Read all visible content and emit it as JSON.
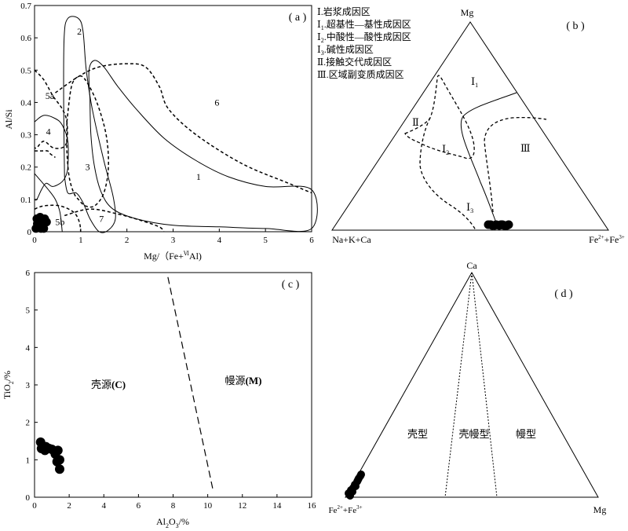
{
  "chart_data": [
    {
      "panel": "(a)",
      "type": "scatter",
      "ylabel": "Al/Si",
      "xlabel_main": "Mg/（Fe+",
      "xlabel_sup": "Ⅵ",
      "xlabel_end": "Al)",
      "xlim": [
        0,
        6
      ],
      "ylim": [
        0,
        0.7
      ],
      "xticks": [
        "0",
        "1",
        "2",
        "3",
        "4",
        "5",
        "6"
      ],
      "yticks": [
        "0",
        "0.1",
        "0.2",
        "0.3",
        "0.4",
        "0.5",
        "0.6",
        "0.7"
      ],
      "grid": false,
      "region_labels": [
        {
          "text": "1",
          "x": 3.55,
          "y": 0.17
        },
        {
          "text": "2",
          "x": 0.97,
          "y": 0.62
        },
        {
          "text": "3",
          "x": 1.15,
          "y": 0.2
        },
        {
          "text": "4",
          "x": 0.3,
          "y": 0.31
        },
        {
          "text": "5a",
          "x": 0.33,
          "y": 0.42
        },
        {
          "text": "5b",
          "x": 0.55,
          "y": 0.03
        },
        {
          "text": "6",
          "x": 3.95,
          "y": 0.4
        },
        {
          "text": "7",
          "x": 1.45,
          "y": 0.04
        }
      ],
      "regions": [
        {
          "label": "1",
          "dash": "solid",
          "points": [
            [
              1.2,
              0.41
            ],
            [
              1.18,
              0.5
            ],
            [
              1.3,
              0.53
            ],
            [
              1.5,
              0.51
            ],
            [
              1.8,
              0.45
            ],
            [
              2.2,
              0.38
            ],
            [
              2.8,
              0.29
            ],
            [
              3.5,
              0.22
            ],
            [
              4.2,
              0.17
            ],
            [
              5.0,
              0.14
            ],
            [
              6.0,
              0.13
            ],
            [
              6,
              0.01
            ],
            [
              5.0,
              0.01
            ],
            [
              4.0,
              0.015
            ],
            [
              3.0,
              0.02
            ],
            [
              2.2,
              0.04
            ],
            [
              1.7,
              0.07
            ],
            [
              1.45,
              0.12
            ],
            [
              1.3,
              0.2
            ],
            [
              1.22,
              0.3
            ],
            [
              1.2,
              0.41
            ]
          ]
        },
        {
          "label": "2",
          "dash": "solid",
          "points": [
            [
              0.65,
              0.17
            ],
            [
              0.63,
              0.4
            ],
            [
              0.64,
              0.6
            ],
            [
              0.72,
              0.66
            ],
            [
              0.95,
              0.66
            ],
            [
              1.05,
              0.62
            ],
            [
              1.12,
              0.5
            ],
            [
              1.25,
              0.38
            ],
            [
              1.5,
              0.22
            ],
            [
              1.7,
              0.11
            ],
            [
              1.75,
              0.04
            ],
            [
              1.6,
              0.005
            ],
            [
              1.4,
              0.0
            ],
            [
              1.2,
              0.04
            ],
            [
              1.05,
              0.09
            ],
            [
              0.9,
              0.12
            ],
            [
              0.72,
              0.12
            ],
            [
              0.65,
              0.17
            ]
          ]
        },
        {
          "label": "3",
          "dash": "dash",
          "points": [
            [
              0.7,
              0.34
            ],
            [
              0.8,
              0.45
            ],
            [
              0.95,
              0.48
            ],
            [
              1.1,
              0.47
            ],
            [
              1.35,
              0.4
            ],
            [
              1.55,
              0.3
            ],
            [
              1.6,
              0.2
            ],
            [
              1.5,
              0.12
            ],
            [
              1.3,
              0.08
            ],
            [
              1.1,
              0.08
            ],
            [
              0.95,
              0.1
            ],
            [
              0.85,
              0.12
            ],
            [
              0.75,
              0.17
            ],
            [
              0.7,
              0.25
            ],
            [
              0.7,
              0.34
            ]
          ]
        },
        {
          "label": "4",
          "dash": "solid",
          "points": [
            [
              0.0,
              0.34
            ],
            [
              0.2,
              0.36
            ],
            [
              0.45,
              0.35
            ],
            [
              0.6,
              0.33
            ],
            [
              0.72,
              0.28
            ],
            [
              0.72,
              0.2
            ],
            [
              0.67,
              0.17
            ],
            [
              0.6,
              0.155
            ],
            [
              0.5,
              0.145
            ],
            [
              0.38,
              0.14
            ],
            [
              0.25,
              0.15
            ],
            [
              0.15,
              0.13
            ],
            [
              0.05,
              0.1
            ],
            [
              0.0,
              0.1
            ]
          ]
        },
        {
          "label": "4 inner",
          "dash": "solid",
          "points": [
            [
              0.0,
              0.18
            ],
            [
              0.12,
              0.16
            ],
            [
              0.3,
              0.13
            ],
            [
              0.45,
              0.1
            ],
            [
              0.55,
              0.06
            ],
            [
              0.6,
              0.0
            ]
          ]
        },
        {
          "label": "5a",
          "dash": "dash",
          "points": [
            [
              0.0,
              0.5
            ],
            [
              0.2,
              0.47
            ],
            [
              0.4,
              0.42
            ],
            [
              0.6,
              0.38
            ],
            [
              0.7,
              0.34
            ],
            [
              0.7,
              0.28
            ],
            [
              0.6,
              0.26
            ],
            [
              0.4,
              0.26
            ],
            [
              0.2,
              0.28
            ],
            [
              0.05,
              0.26
            ],
            [
              0.0,
              0.26
            ]
          ]
        },
        {
          "label": "5a lower",
          "dash": "dash",
          "points": [
            [
              0.0,
              0.25
            ],
            [
              0.15,
              0.25
            ],
            [
              0.28,
              0.25
            ],
            [
              0.35,
              0.24
            ],
            [
              0.45,
              0.23
            ]
          ]
        },
        {
          "label": "5b",
          "dash": "dash",
          "points": [
            [
              0.0,
              0.07
            ],
            [
              0.2,
              0.08
            ],
            [
              0.55,
              0.08
            ],
            [
              0.85,
              0.06
            ],
            [
              0.97,
              0.03
            ],
            [
              1.0,
              0.0
            ]
          ]
        },
        {
          "label": "6",
          "dash": "dash",
          "points": [
            [
              0.45,
              0.43
            ],
            [
              0.95,
              0.48
            ],
            [
              1.4,
              0.51
            ],
            [
              2.0,
              0.52
            ],
            [
              2.4,
              0.51
            ],
            [
              2.7,
              0.45
            ],
            [
              2.9,
              0.38
            ],
            [
              3.5,
              0.3
            ],
            [
              4.5,
              0.21
            ],
            [
              5.5,
              0.15
            ],
            [
              6.0,
              0.12
            ]
          ]
        },
        {
          "label": "7",
          "dash": "dash",
          "points": [
            [
              0.65,
              0.05
            ],
            [
              1.2,
              0.07
            ],
            [
              1.8,
              0.055
            ],
            [
              2.3,
              0.035
            ],
            [
              2.7,
              0.015
            ],
            [
              2.8,
              0.0
            ]
          ]
        }
      ],
      "samples": {
        "marker": "filled-circle",
        "points": [
          [
            0.03,
            0.01
          ],
          [
            0.06,
            0.025
          ],
          [
            0.05,
            0.04
          ],
          [
            0.09,
            0.03
          ],
          [
            0.12,
            0.045
          ],
          [
            0.15,
            0.03
          ],
          [
            0.18,
            0.02
          ],
          [
            0.22,
            0.04
          ],
          [
            0.26,
            0.03
          ],
          [
            0.08,
            0.015
          ],
          [
            0.14,
            0.01
          ],
          [
            0.2,
            0.01
          ]
        ]
      }
    },
    {
      "panel": "(b)",
      "type": "ternary",
      "apex_top": "Mg",
      "apex_left": "Na+K+Ca",
      "apex_right_main": "Fe",
      "apex_right_sup1": "2+",
      "apex_right_mid": "+Fe",
      "apex_right_sup2": "3+",
      "legend": [
        {
          "roman": "Ⅰ",
          "sub": "",
          "text": ".岩浆成因区"
        },
        {
          "roman": "Ⅰ",
          "sub": "1",
          "text": ".超基性—基性成因区"
        },
        {
          "roman": "Ⅰ",
          "sub": "2",
          "text": ".中酸性—酸性成因区"
        },
        {
          "roman": "Ⅰ",
          "sub": "3",
          "text": ".碱性成因区"
        },
        {
          "roman": "Ⅱ",
          "sub": "",
          "text": ".接触交代成因区"
        },
        {
          "roman": "Ⅲ",
          "sub": "",
          "text": ".区域副变质成因区"
        }
      ],
      "region_labels": [
        {
          "roman": "Ⅰ",
          "sub": "1"
        },
        {
          "roman": "Ⅱ",
          "sub": ""
        },
        {
          "roman": "Ⅰ",
          "sub": "2"
        },
        {
          "roman": "Ⅰ",
          "sub": "3"
        },
        {
          "roman": "Ⅲ",
          "sub": ""
        }
      ],
      "samples": {
        "marker": "filled-circle",
        "count": 12,
        "location": "bottom edge near Fe2+ + Fe3+ side"
      }
    },
    {
      "panel": "(c)",
      "type": "scatter",
      "xlabel_main": "Al",
      "xlabel_sub1": "2",
      "xlabel_mid": "O",
      "xlabel_sub2": "3",
      "xlabel_end": "/%",
      "ylabel_main": "TiO",
      "ylabel_sub": "2",
      "ylabel_end": "/%",
      "xlim": [
        0,
        16
      ],
      "ylim": [
        0,
        6
      ],
      "xticks": [
        "0",
        "2",
        "4",
        "6",
        "8",
        "10",
        "12",
        "14",
        "16"
      ],
      "yticks": [
        "0",
        "1",
        "2",
        "3",
        "4",
        "5",
        "6"
      ],
      "grid": false,
      "boundary_line": {
        "dash": "dash",
        "points": [
          [
            7.7,
            5.88
          ],
          [
            10.3,
            0.2
          ]
        ]
      },
      "field_labels": [
        {
          "text": "壳源",
          "bold": "(C)"
        },
        {
          "text": "幔源",
          "bold": "(M)"
        }
      ],
      "samples": {
        "marker": "filled-circle",
        "points": [
          [
            0.35,
            1.47
          ],
          [
            0.4,
            1.3
          ],
          [
            0.6,
            1.25
          ],
          [
            0.65,
            1.35
          ],
          [
            0.85,
            1.3
          ],
          [
            1.0,
            1.28
          ],
          [
            1.15,
            1.22
          ],
          [
            1.2,
            1.15
          ],
          [
            1.35,
            1.25
          ],
          [
            1.3,
            0.95
          ],
          [
            1.45,
            1.0
          ],
          [
            1.45,
            0.75
          ]
        ]
      }
    },
    {
      "panel": "(d)",
      "type": "ternary",
      "apex_top": "Ca",
      "apex_right": "Mg",
      "apex_left_main": "Fe",
      "apex_left_sup1": "2+",
      "apex_left_mid": "+Fe",
      "apex_left_sup2": "3+",
      "field_labels": [
        "壳型",
        "壳幔型",
        "幔型"
      ],
      "samples": {
        "marker": "filled-circle",
        "count": 12,
        "location": "near Fe2+ + Fe3+ apex"
      }
    }
  ]
}
